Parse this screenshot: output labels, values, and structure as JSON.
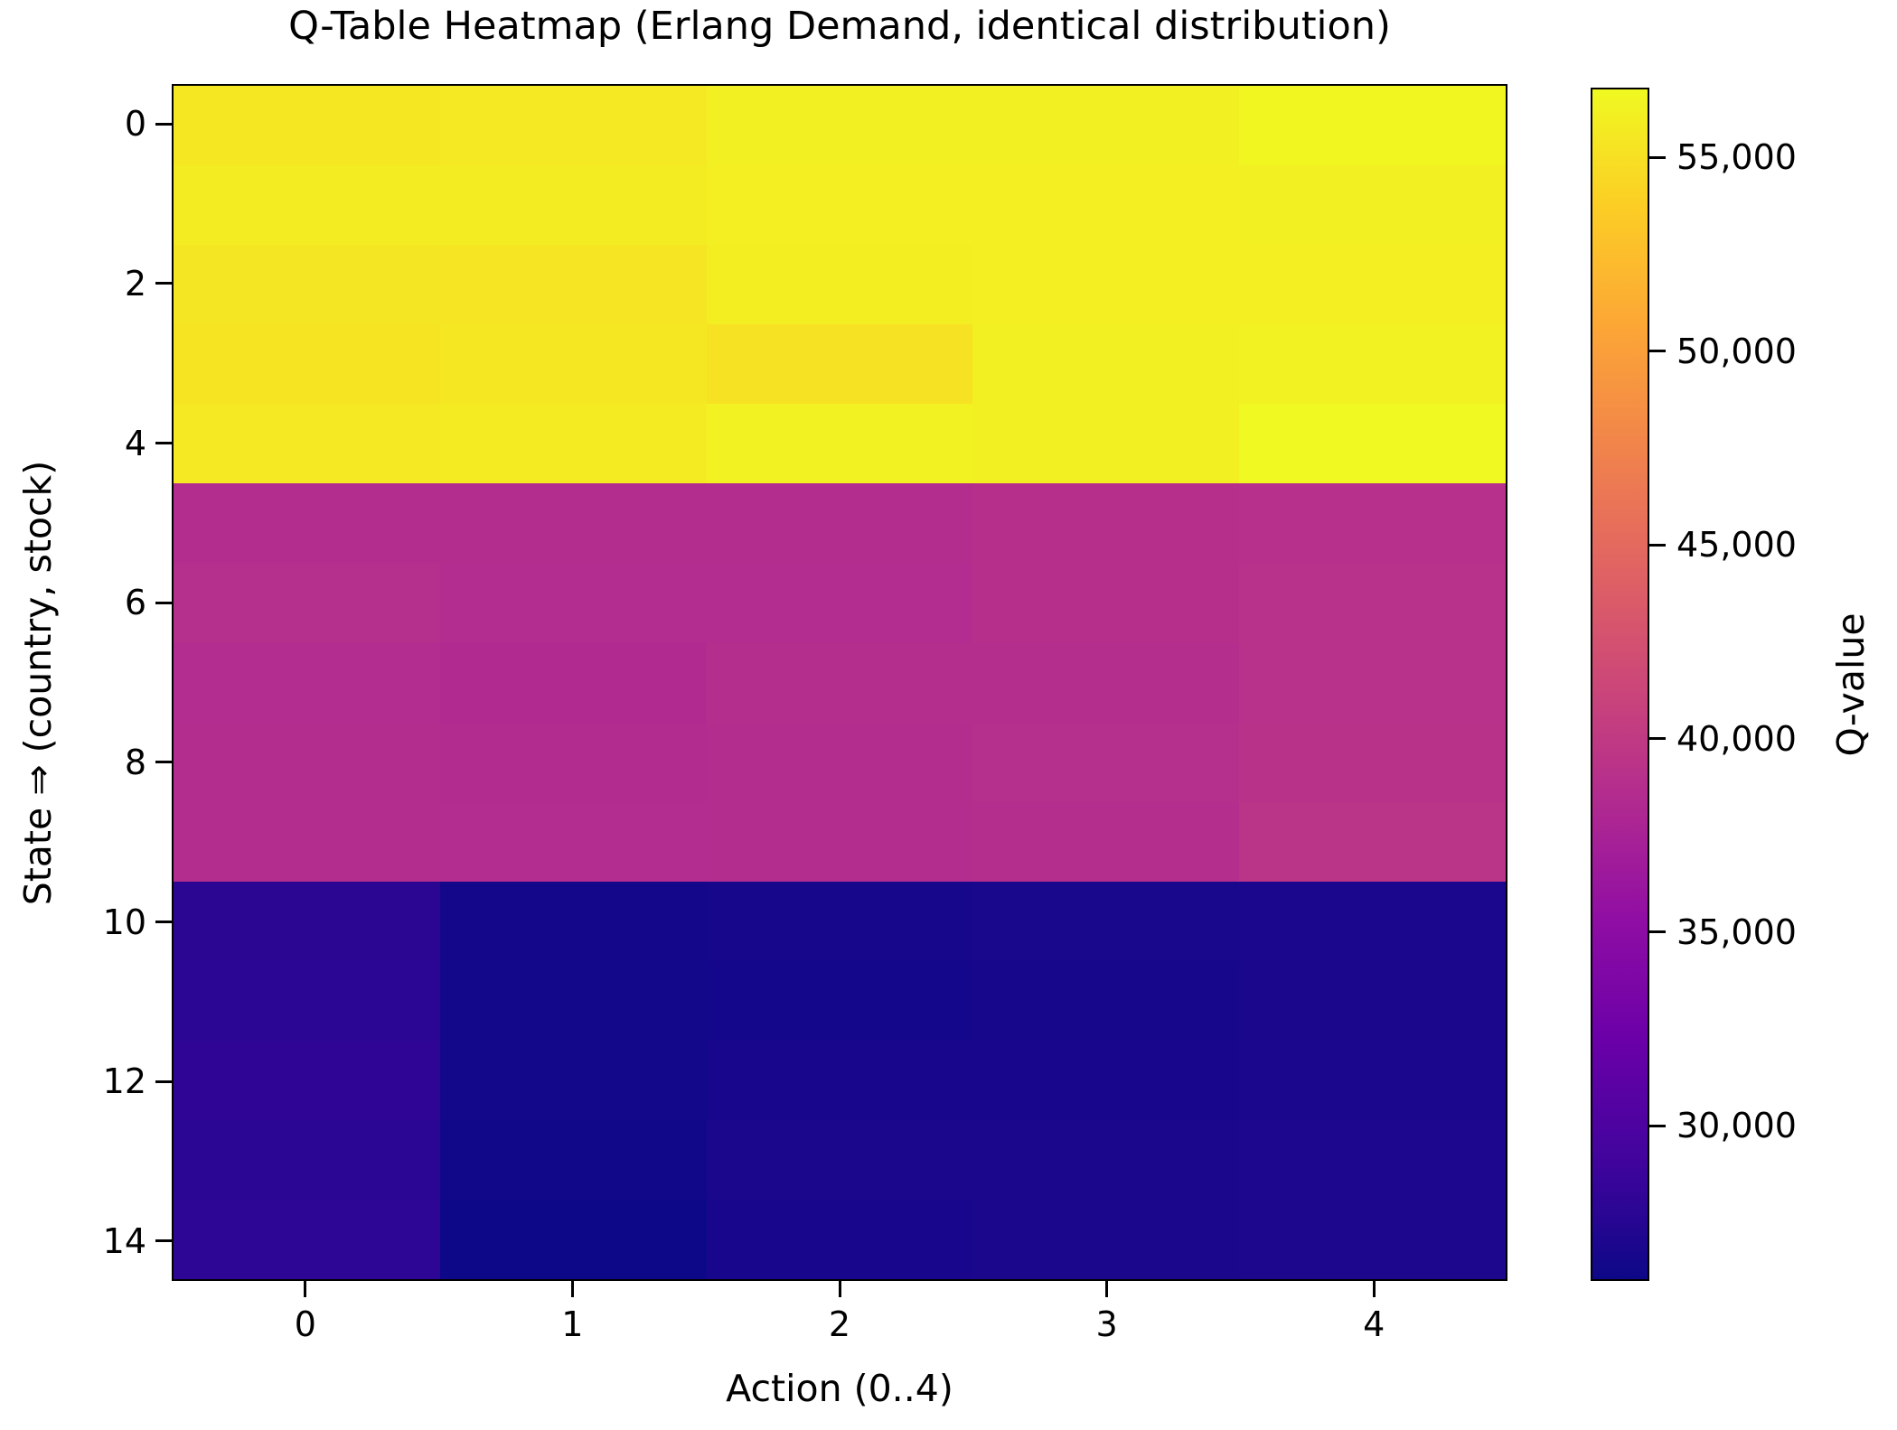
{
  "chart_data": {
    "type": "heatmap",
    "title": "Q-Table Heatmap (Erlang Demand, identical distribution)",
    "xlabel": "Action (0..4)",
    "ylabel": "State ⇒ (country, stock)",
    "colorbar_label": "Q-value",
    "rows": 15,
    "cols": 5,
    "x_tick_labels": [
      "0",
      "1",
      "2",
      "3",
      "4"
    ],
    "y_tick_labels": [
      "0",
      "2",
      "4",
      "6",
      "8",
      "10",
      "12",
      "14"
    ],
    "y_tick_rows": [
      0,
      2,
      4,
      6,
      8,
      10,
      12,
      14
    ],
    "vmin": 26000,
    "vmax": 56800,
    "colorbar_ticks": [
      {
        "value": 55000,
        "label": "55,000"
      },
      {
        "value": 50000,
        "label": "50,000"
      },
      {
        "value": 45000,
        "label": "45,000"
      },
      {
        "value": 40000,
        "label": "40,000"
      },
      {
        "value": 35000,
        "label": "35,000"
      },
      {
        "value": 30000,
        "label": "30,000"
      }
    ],
    "colormap_name": "plasma",
    "colormap_stops": [
      [
        0.0,
        "#0d0887"
      ],
      [
        0.1,
        "#41049d"
      ],
      [
        0.2,
        "#6a00a8"
      ],
      [
        0.3,
        "#8f0da4"
      ],
      [
        0.4,
        "#b12a90"
      ],
      [
        0.5,
        "#cc4778"
      ],
      [
        0.6,
        "#e16462"
      ],
      [
        0.7,
        "#f1844b"
      ],
      [
        0.8,
        "#fca636"
      ],
      [
        0.9,
        "#fccd25"
      ],
      [
        1.0,
        "#f0f921"
      ]
    ],
    "background_color": "#ffffff",
    "axis_color": "#000000",
    "values": [
      [
        55600,
        55700,
        56200,
        56200,
        56600
      ],
      [
        55900,
        55900,
        56100,
        56100,
        56200
      ],
      [
        55500,
        55400,
        56000,
        56100,
        56100
      ],
      [
        55300,
        55600,
        55200,
        56200,
        56300
      ],
      [
        55700,
        55800,
        56300,
        56200,
        56800
      ],
      [
        38600,
        38600,
        38600,
        38900,
        39000
      ],
      [
        38800,
        38500,
        38500,
        38900,
        39100
      ],
      [
        38500,
        38300,
        38700,
        38700,
        39100
      ],
      [
        38600,
        38400,
        38600,
        38800,
        39200
      ],
      [
        38600,
        38500,
        38600,
        38700,
        39400
      ],
      [
        27700,
        26400,
        26600,
        26700,
        26800
      ],
      [
        27800,
        26350,
        26500,
        26600,
        26750
      ],
      [
        28000,
        26300,
        26650,
        26650,
        26850
      ],
      [
        27800,
        26200,
        26750,
        26750,
        26950
      ],
      [
        27900,
        26000,
        26650,
        26750,
        26900
      ]
    ]
  }
}
